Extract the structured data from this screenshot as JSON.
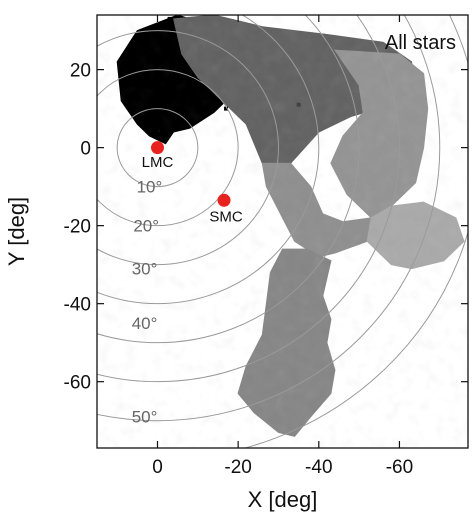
{
  "chart_data": {
    "type": "heatmap",
    "panel_title": "All stars",
    "xlabel": "X [deg]",
    "ylabel": "Y [deg]",
    "xlim": [
      15,
      -77
    ],
    "ylim": [
      -77,
      34
    ],
    "x_ticks": [
      {
        "value": 0,
        "label": "0"
      },
      {
        "value": -20,
        "label": "-20"
      },
      {
        "value": -40,
        "label": "-40"
      },
      {
        "value": -60,
        "label": "-60"
      }
    ],
    "y_ticks": [
      {
        "value": 20,
        "label": "20"
      },
      {
        "value": 0,
        "label": "0"
      },
      {
        "value": -20,
        "label": "-20"
      },
      {
        "value": -40,
        "label": "-40"
      },
      {
        "value": -60,
        "label": "-60"
      }
    ],
    "center": {
      "x": 0,
      "y": 0
    },
    "rings": [
      {
        "radius": 10,
        "label": "10°",
        "label_x": 2,
        "label_y": -11.5
      },
      {
        "radius": 20,
        "label": "20°",
        "label_x": 2.8,
        "label_y": -21.5
      },
      {
        "radius": 30,
        "label": "30°",
        "label_x": 3.2,
        "label_y": -32.5
      },
      {
        "radius": 40,
        "label": "40°",
        "label_x": 3.2,
        "label_y": -46.5
      },
      {
        "radius": 50,
        "label": "50°",
        "label_x": 3.2,
        "label_y": -70.5
      },
      {
        "radius": 60
      },
      {
        "radius": 70
      },
      {
        "radius": 80
      }
    ],
    "markers": [
      {
        "name": "LMC",
        "x": 0,
        "y": 0,
        "label": "LMC",
        "label_x": 0,
        "label_y": -5,
        "color": "#e8231f"
      },
      {
        "name": "SMC",
        "x": -16.5,
        "y": -13.5,
        "label": "SMC",
        "label_x": -17,
        "label_y": -19,
        "color": "#e8231f"
      }
    ],
    "density_regions": [
      {
        "name": "dark-core",
        "level": 0.97,
        "polygon": [
          [
            5,
            30
          ],
          [
            -5,
            34
          ],
          [
            -14,
            31
          ],
          [
            -20,
            20
          ],
          [
            -18,
            13
          ],
          [
            -14,
            9
          ],
          [
            -8,
            5
          ],
          [
            -4,
            4
          ],
          [
            -2,
            1
          ],
          [
            2,
            3
          ],
          [
            5,
            6
          ],
          [
            9,
            12
          ],
          [
            10,
            22
          ]
        ]
      },
      {
        "name": "upper-arm",
        "level": 0.58,
        "polygon": [
          [
            -4,
            33
          ],
          [
            -14,
            34
          ],
          [
            -26,
            31
          ],
          [
            -42,
            29
          ],
          [
            -56,
            27
          ],
          [
            -63,
            22
          ],
          [
            -64,
            15
          ],
          [
            -58,
            11
          ],
          [
            -48,
            8
          ],
          [
            -40,
            4
          ],
          [
            -33,
            -4
          ],
          [
            -26,
            -4
          ],
          [
            -22,
            6
          ],
          [
            -16,
            12
          ],
          [
            -10,
            18
          ],
          [
            -6,
            24
          ]
        ]
      },
      {
        "name": "outer-arc",
        "level": 0.4,
        "polygon": [
          [
            -44,
            25
          ],
          [
            -60,
            24
          ],
          [
            -66,
            19
          ],
          [
            -67,
            10
          ],
          [
            -66,
            0
          ],
          [
            -64,
            -9
          ],
          [
            -58,
            -15
          ],
          [
            -53,
            -18
          ],
          [
            -47,
            -12
          ],
          [
            -43,
            -4
          ],
          [
            -46,
            3
          ],
          [
            -51,
            9
          ],
          [
            -50,
            16
          ]
        ]
      },
      {
        "name": "arm-bridge",
        "level": 0.42,
        "polygon": [
          [
            -26,
            -4
          ],
          [
            -33,
            -4
          ],
          [
            -38,
            -10
          ],
          [
            -41,
            -17
          ],
          [
            -46,
            -19
          ],
          [
            -53,
            -18
          ],
          [
            -52,
            -24
          ],
          [
            -44,
            -27
          ],
          [
            -40,
            -28
          ],
          [
            -34,
            -24
          ],
          [
            -30,
            -16
          ],
          [
            -27,
            -10
          ]
        ]
      },
      {
        "name": "right-tail",
        "level": 0.32,
        "polygon": [
          [
            -53,
            -18
          ],
          [
            -58,
            -15
          ],
          [
            -66,
            -14
          ],
          [
            -74,
            -18
          ],
          [
            -76,
            -24
          ],
          [
            -71,
            -29
          ],
          [
            -63,
            -31
          ],
          [
            -58,
            -30
          ],
          [
            -52,
            -24
          ]
        ]
      },
      {
        "name": "lower-arm",
        "level": 0.45,
        "polygon": [
          [
            -31,
            -26
          ],
          [
            -37,
            -26
          ],
          [
            -43,
            -29
          ],
          [
            -41,
            -38
          ],
          [
            -43,
            -44
          ],
          [
            -42,
            -50
          ],
          [
            -44,
            -57
          ],
          [
            -43,
            -63
          ],
          [
            -38,
            -69
          ],
          [
            -34,
            -74
          ],
          [
            -30,
            -73
          ],
          [
            -24,
            -68
          ],
          [
            -20,
            -63
          ],
          [
            -22,
            -56
          ],
          [
            -26,
            -48
          ],
          [
            -27,
            -40
          ],
          [
            -28,
            -32
          ]
        ]
      }
    ],
    "stray_pixels": [
      {
        "x": -3,
        "y": 33,
        "level": 0.95
      },
      {
        "x": -17,
        "y": 10,
        "level": 0.9
      },
      {
        "x": -35,
        "y": 11,
        "level": 0.7
      }
    ]
  }
}
